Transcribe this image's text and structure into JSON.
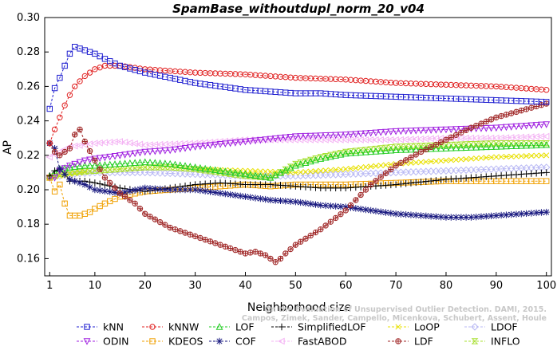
{
  "chart_data": {
    "type": "line",
    "title": "SpamBase_withoutdupl_norm_20_v04",
    "xlabel": "Neighborhood size",
    "ylabel": "AP",
    "xlim": [
      0,
      101
    ],
    "ylim": [
      0.15,
      0.3
    ],
    "x_ticks": [
      1,
      10,
      20,
      30,
      40,
      50,
      60,
      70,
      80,
      90,
      100
    ],
    "y_ticks": [
      0.16,
      0.18,
      0.2,
      0.22,
      0.24,
      0.26,
      0.28,
      0.3
    ],
    "y_tick_labels": [
      "0.16",
      "0.18",
      "0.20",
      "0.22",
      "0.24",
      "0.26",
      "0.28",
      "0.30"
    ],
    "grid": false,
    "legend_position": "bottom",
    "series": [
      {
        "name": "kNN",
        "color": "#1f1fd0",
        "marker": "square",
        "points": [
          [
            1,
            0.247
          ],
          [
            2,
            0.259
          ],
          [
            3,
            0.265
          ],
          [
            4,
            0.272
          ],
          [
            5,
            0.279
          ],
          [
            6,
            0.283
          ],
          [
            8,
            0.281
          ],
          [
            10,
            0.279
          ],
          [
            12,
            0.276
          ],
          [
            15,
            0.272
          ],
          [
            20,
            0.268
          ],
          [
            25,
            0.265
          ],
          [
            30,
            0.262
          ],
          [
            35,
            0.26
          ],
          [
            40,
            0.258
          ],
          [
            45,
            0.257
          ],
          [
            50,
            0.256
          ],
          [
            55,
            0.256
          ],
          [
            60,
            0.255
          ],
          [
            70,
            0.254
          ],
          [
            80,
            0.253
          ],
          [
            90,
            0.252
          ],
          [
            100,
            0.251
          ]
        ]
      },
      {
        "name": "kNNW",
        "color": "#e02020",
        "marker": "circle",
        "points": [
          [
            1,
            0.227
          ],
          [
            2,
            0.235
          ],
          [
            3,
            0.242
          ],
          [
            4,
            0.249
          ],
          [
            5,
            0.255
          ],
          [
            6,
            0.26
          ],
          [
            8,
            0.266
          ],
          [
            10,
            0.27
          ],
          [
            12,
            0.272
          ],
          [
            15,
            0.272
          ],
          [
            20,
            0.27
          ],
          [
            25,
            0.269
          ],
          [
            30,
            0.268
          ],
          [
            40,
            0.267
          ],
          [
            50,
            0.265
          ],
          [
            60,
            0.264
          ],
          [
            70,
            0.262
          ],
          [
            80,
            0.261
          ],
          [
            90,
            0.26
          ],
          [
            100,
            0.258
          ]
        ]
      },
      {
        "name": "LOF",
        "color": "#22cc22",
        "marker": "triangle-up",
        "points": [
          [
            1,
            0.208
          ],
          [
            2,
            0.21
          ],
          [
            3,
            0.212
          ],
          [
            5,
            0.213
          ],
          [
            8,
            0.214
          ],
          [
            10,
            0.214
          ],
          [
            15,
            0.215
          ],
          [
            20,
            0.216
          ],
          [
            25,
            0.215
          ],
          [
            30,
            0.213
          ],
          [
            35,
            0.211
          ],
          [
            40,
            0.209
          ],
          [
            45,
            0.207
          ],
          [
            50,
            0.214
          ],
          [
            55,
            0.218
          ],
          [
            60,
            0.221
          ],
          [
            70,
            0.223
          ],
          [
            80,
            0.224
          ],
          [
            90,
            0.225
          ],
          [
            100,
            0.226
          ]
        ]
      },
      {
        "name": "SimplifiedLOF",
        "color": "#000000",
        "marker": "plus",
        "points": [
          [
            1,
            0.208
          ],
          [
            2,
            0.211
          ],
          [
            3,
            0.212
          ],
          [
            4,
            0.209
          ],
          [
            5,
            0.205
          ],
          [
            8,
            0.205
          ],
          [
            10,
            0.204
          ],
          [
            15,
            0.201
          ],
          [
            20,
            0.199
          ],
          [
            25,
            0.201
          ],
          [
            30,
            0.203
          ],
          [
            35,
            0.204
          ],
          [
            40,
            0.203
          ],
          [
            45,
            0.203
          ],
          [
            50,
            0.202
          ],
          [
            55,
            0.201
          ],
          [
            60,
            0.201
          ],
          [
            70,
            0.203
          ],
          [
            80,
            0.206
          ],
          [
            90,
            0.208
          ],
          [
            100,
            0.21
          ]
        ]
      },
      {
        "name": "LoOP",
        "color": "#e8e000",
        "marker": "x",
        "points": [
          [
            1,
            0.207
          ],
          [
            3,
            0.208
          ],
          [
            5,
            0.209
          ],
          [
            10,
            0.211
          ],
          [
            15,
            0.212
          ],
          [
            20,
            0.213
          ],
          [
            25,
            0.213
          ],
          [
            30,
            0.212
          ],
          [
            40,
            0.211
          ],
          [
            50,
            0.21
          ],
          [
            60,
            0.212
          ],
          [
            70,
            0.215
          ],
          [
            80,
            0.217
          ],
          [
            90,
            0.219
          ],
          [
            100,
            0.22
          ]
        ]
      },
      {
        "name": "LDOF",
        "color": "#b8b8f4",
        "marker": "diamond",
        "points": [
          [
            1,
            0.207
          ],
          [
            3,
            0.208
          ],
          [
            5,
            0.209
          ],
          [
            10,
            0.21
          ],
          [
            20,
            0.21
          ],
          [
            30,
            0.209
          ],
          [
            40,
            0.208
          ],
          [
            50,
            0.208
          ],
          [
            60,
            0.209
          ],
          [
            70,
            0.21
          ],
          [
            80,
            0.211
          ],
          [
            90,
            0.212
          ],
          [
            100,
            0.213
          ]
        ]
      },
      {
        "name": "ODIN",
        "color": "#a020e0",
        "marker": "triangle-down",
        "points": [
          [
            1,
            0.207
          ],
          [
            2,
            0.207
          ],
          [
            3,
            0.211
          ],
          [
            5,
            0.214
          ],
          [
            8,
            0.217
          ],
          [
            10,
            0.218
          ],
          [
            15,
            0.22
          ],
          [
            20,
            0.222
          ],
          [
            25,
            0.223
          ],
          [
            30,
            0.225
          ],
          [
            40,
            0.228
          ],
          [
            50,
            0.231
          ],
          [
            60,
            0.232
          ],
          [
            70,
            0.234
          ],
          [
            80,
            0.235
          ],
          [
            90,
            0.236
          ],
          [
            100,
            0.238
          ]
        ]
      },
      {
        "name": "KDEOS",
        "color": "#f0a000",
        "marker": "square",
        "points": [
          [
            1,
            0.207
          ],
          [
            2,
            0.199
          ],
          [
            3,
            0.203
          ],
          [
            4,
            0.192
          ],
          [
            5,
            0.185
          ],
          [
            7,
            0.185
          ],
          [
            9,
            0.187
          ],
          [
            10,
            0.189
          ],
          [
            12,
            0.192
          ],
          [
            15,
            0.196
          ],
          [
            20,
            0.199
          ],
          [
            25,
            0.2
          ],
          [
            30,
            0.201
          ],
          [
            35,
            0.202
          ],
          [
            40,
            0.203
          ],
          [
            45,
            0.202
          ],
          [
            50,
            0.203
          ],
          [
            55,
            0.203
          ],
          [
            60,
            0.203
          ],
          [
            70,
            0.204
          ],
          [
            80,
            0.205
          ],
          [
            90,
            0.205
          ],
          [
            100,
            0.205
          ]
        ]
      },
      {
        "name": "COF",
        "color": "#1a1a80",
        "marker": "star",
        "points": [
          [
            1,
            0.227
          ],
          [
            2,
            0.224
          ],
          [
            3,
            0.212
          ],
          [
            5,
            0.206
          ],
          [
            8,
            0.203
          ],
          [
            10,
            0.2
          ],
          [
            15,
            0.198
          ],
          [
            20,
            0.201
          ],
          [
            25,
            0.2
          ],
          [
            30,
            0.2
          ],
          [
            35,
            0.198
          ],
          [
            40,
            0.196
          ],
          [
            45,
            0.194
          ],
          [
            50,
            0.193
          ],
          [
            55,
            0.191
          ],
          [
            60,
            0.19
          ],
          [
            65,
            0.188
          ],
          [
            70,
            0.186
          ],
          [
            75,
            0.185
          ],
          [
            80,
            0.184
          ],
          [
            85,
            0.184
          ],
          [
            90,
            0.185
          ],
          [
            95,
            0.186
          ],
          [
            100,
            0.187
          ]
        ]
      },
      {
        "name": "FastABOD",
        "color": "#f4b4f4",
        "marker": "triangle-left",
        "points": [
          [
            1,
            0.219
          ],
          [
            3,
            0.222
          ],
          [
            5,
            0.225
          ],
          [
            10,
            0.227
          ],
          [
            15,
            0.228
          ],
          [
            20,
            0.226
          ],
          [
            30,
            0.227
          ],
          [
            40,
            0.229
          ],
          [
            50,
            0.229
          ],
          [
            60,
            0.229
          ],
          [
            70,
            0.229
          ],
          [
            80,
            0.23
          ],
          [
            90,
            0.23
          ],
          [
            100,
            0.231
          ]
        ]
      },
      {
        "name": "LDF",
        "color": "#a02828",
        "marker": "circle-plus",
        "points": [
          [
            1,
            0.227
          ],
          [
            2,
            0.222
          ],
          [
            3,
            0.22
          ],
          [
            5,
            0.224
          ],
          [
            6,
            0.232
          ],
          [
            7,
            0.235
          ],
          [
            8,
            0.228
          ],
          [
            10,
            0.217
          ],
          [
            12,
            0.207
          ],
          [
            15,
            0.198
          ],
          [
            18,
            0.192
          ],
          [
            20,
            0.186
          ],
          [
            25,
            0.178
          ],
          [
            30,
            0.173
          ],
          [
            35,
            0.168
          ],
          [
            38,
            0.165
          ],
          [
            40,
            0.163
          ],
          [
            42,
            0.164
          ],
          [
            44,
            0.162
          ],
          [
            46,
            0.158
          ],
          [
            47,
            0.16
          ],
          [
            48,
            0.163
          ],
          [
            50,
            0.168
          ],
          [
            55,
            0.177
          ],
          [
            60,
            0.188
          ],
          [
            65,
            0.203
          ],
          [
            70,
            0.214
          ],
          [
            75,
            0.222
          ],
          [
            80,
            0.229
          ],
          [
            85,
            0.236
          ],
          [
            90,
            0.242
          ],
          [
            95,
            0.246
          ],
          [
            100,
            0.25
          ]
        ]
      },
      {
        "name": "INFLO",
        "color": "#a8e030",
        "marker": "hourglass",
        "points": [
          [
            1,
            0.207
          ],
          [
            3,
            0.209
          ],
          [
            5,
            0.21
          ],
          [
            10,
            0.211
          ],
          [
            15,
            0.212
          ],
          [
            20,
            0.213
          ],
          [
            25,
            0.213
          ],
          [
            30,
            0.212
          ],
          [
            35,
            0.21
          ],
          [
            40,
            0.208
          ],
          [
            45,
            0.207
          ],
          [
            50,
            0.215
          ],
          [
            55,
            0.219
          ],
          [
            60,
            0.222
          ],
          [
            70,
            0.225
          ],
          [
            80,
            0.226
          ],
          [
            90,
            0.227
          ],
          [
            100,
            0.227
          ]
        ]
      }
    ]
  },
  "watermark": {
    "line1": "Campos, Zimek, Sander, Campello, Micenkova, Schubert, Assent, Houle",
    "line2": "On the Evaluation of Unsupervised Outlier Detection. DAMI, 2015."
  }
}
